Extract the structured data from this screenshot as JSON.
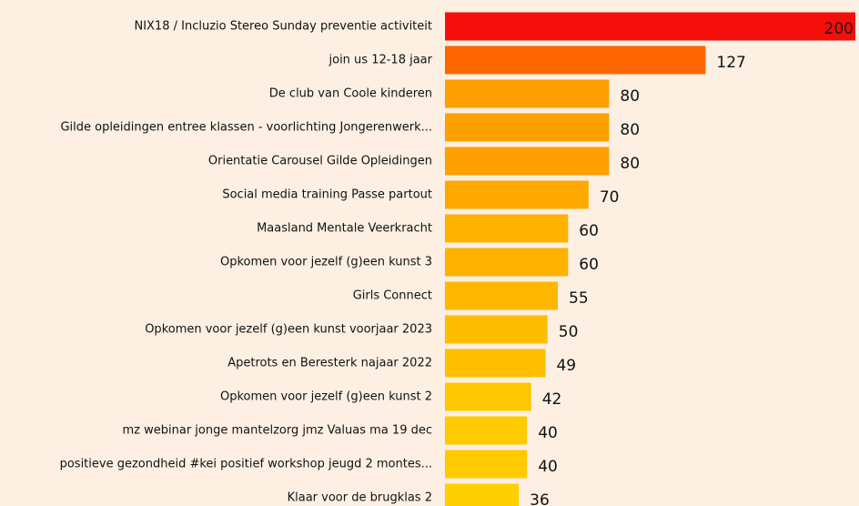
{
  "chart_data": {
    "type": "barh",
    "categories": [
      "NIX18 / Incluzio Stereo Sunday preventie activiteit",
      "join us 12-18 jaar",
      "De club van Coole kinderen",
      "Gilde opleidingen entree klassen - voorlichting Jongerenwerk...",
      "Orientatie Carousel Gilde Opleidingen",
      "Social media training Passe partout",
      "Maasland Mentale Veerkracht",
      "Opkomen voor jezelf (g)een kunst 3",
      "Girls Connect",
      "Opkomen voor jezelf (g)een kunst voorjaar 2023",
      "Apetrots en Beresterk najaar 2022",
      "Opkomen voor jezelf (g)een kunst 2",
      "mz webinar jonge mantelzorg jmz Valuas ma 19 dec",
      "positieve gezondheid #kei positief workshop jeugd 2 montes...",
      "Klaar voor de brugklas 2"
    ],
    "values": [
      200,
      127,
      80,
      80,
      80,
      70,
      60,
      60,
      55,
      50,
      49,
      42,
      40,
      40,
      36
    ],
    "colors": [
      "#f40f0c",
      "#ff6600",
      "#ff9f00",
      "#ff9f00",
      "#ff9f00",
      "#ffa800",
      "#ffb100",
      "#ffb100",
      "#ffb700",
      "#ffbd00",
      "#ffbe00",
      "#ffc700",
      "#ffca00",
      "#ffca00",
      "#ffcf00"
    ]
  }
}
